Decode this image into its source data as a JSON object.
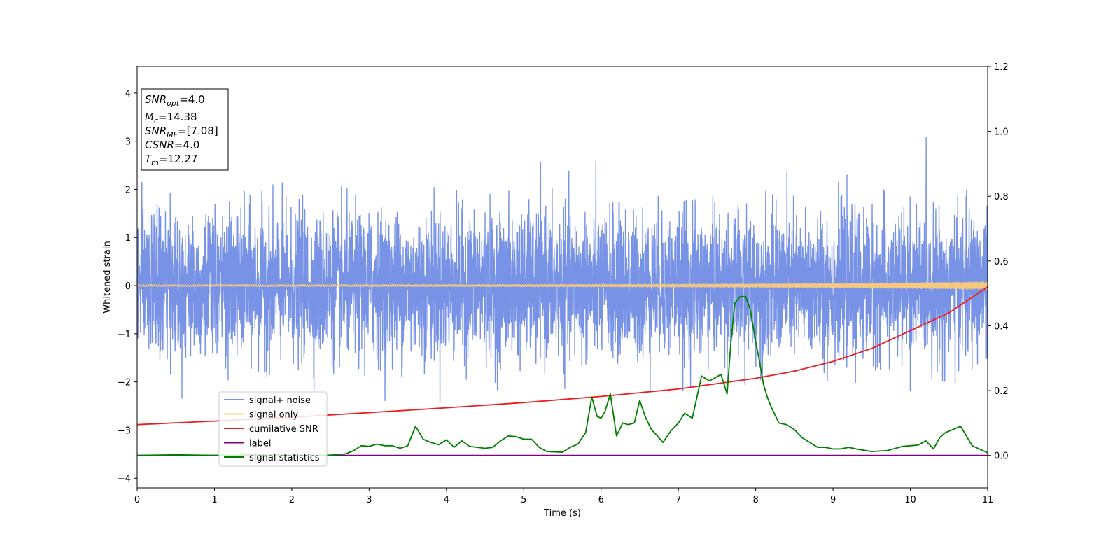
{
  "chart_data": {
    "type": "line",
    "xlabel": "Time (s)",
    "ylabel": "Whitened strain",
    "xlim": [
      0,
      11
    ],
    "ylim": [
      -4.2,
      4.55
    ],
    "y2lim": [
      -0.1,
      1.2
    ],
    "x_ticks": [
      0,
      1,
      2,
      3,
      4,
      5,
      6,
      7,
      8,
      9,
      10,
      11
    ],
    "y_ticks": [
      4,
      3,
      2,
      1,
      0,
      -1,
      -2,
      -3,
      -4
    ],
    "y_tick_labels": [
      "4",
      "3",
      "2",
      "1",
      "0",
      "−1",
      "−2",
      "−3",
      "−4"
    ],
    "y2_ticks": [
      1.2,
      1.0,
      0.8,
      0.6,
      0.4,
      0.2,
      0.0
    ],
    "y2_tick_labels": [
      "1.2",
      "1.0",
      "0.8",
      "0.6",
      "0.4",
      "0.2",
      "0.0"
    ],
    "legend_position": "bottom-left",
    "legend": [
      {
        "label": "signal+ noise",
        "color": "#7893e6"
      },
      {
        "label": "signal only",
        "color": "#f7c97e"
      },
      {
        "label": "cumilative SNR",
        "color": "#ee1c1c"
      },
      {
        "label": "label",
        "color": "#800080"
      },
      {
        "label": "signal statistics",
        "color": "#008000"
      }
    ],
    "info_box": {
      "snr_opt": "4.0",
      "mc": "14.38",
      "snr_mf": "[7.08]",
      "csnr": "4.0",
      "tm": "12.27"
    },
    "series": [
      {
        "name": "signal+ noise",
        "axis": "left",
        "color": "#7893e6",
        "style": "noise",
        "sigma": 0.72,
        "x_range": [
          0,
          11
        ]
      },
      {
        "name": "signal only",
        "axis": "left",
        "color": "#f7c97e",
        "style": "chirp",
        "start_amplitude": 0.02,
        "end_amplitude": 0.08,
        "x_range": [
          0,
          11
        ]
      },
      {
        "name": "cumilative SNR",
        "axis": "right",
        "color": "#ee1c1c",
        "x": [
          0,
          1,
          2,
          3,
          4,
          5,
          6,
          7,
          8,
          8.5,
          9,
          9.5,
          10,
          10.5,
          11
        ],
        "y": [
          0.095,
          0.106,
          0.118,
          0.132,
          0.147,
          0.163,
          0.182,
          0.205,
          0.238,
          0.26,
          0.29,
          0.33,
          0.385,
          0.44,
          0.52
        ]
      },
      {
        "name": "label",
        "axis": "right",
        "color": "#800080",
        "x": [
          0,
          11
        ],
        "y": [
          0.0,
          0.0
        ]
      },
      {
        "name": "signal statistics",
        "axis": "right",
        "color": "#008000",
        "x": [
          0,
          0.5,
          1.0,
          1.5,
          2.0,
          2.5,
          2.7,
          2.8,
          2.9,
          3.0,
          3.1,
          3.2,
          3.3,
          3.4,
          3.5,
          3.6,
          3.7,
          3.8,
          3.9,
          4.0,
          4.1,
          4.2,
          4.3,
          4.4,
          4.5,
          4.6,
          4.7,
          4.8,
          4.9,
          5.0,
          5.1,
          5.2,
          5.3,
          5.5,
          5.6,
          5.7,
          5.8,
          5.88,
          5.95,
          6.0,
          6.05,
          6.12,
          6.2,
          6.28,
          6.35,
          6.43,
          6.5,
          6.57,
          6.65,
          6.73,
          6.8,
          6.9,
          7.0,
          7.08,
          7.18,
          7.3,
          7.4,
          7.48,
          7.55,
          7.63,
          7.68,
          7.73,
          7.8,
          7.87,
          7.93,
          8.0,
          8.05,
          8.1,
          8.15,
          8.2,
          8.3,
          8.4,
          8.5,
          8.6,
          8.7,
          8.8,
          8.9,
          9.0,
          9.1,
          9.2,
          9.3,
          9.5,
          9.7,
          9.9,
          10.0,
          10.1,
          10.2,
          10.3,
          10.38,
          10.45,
          10.5,
          10.55,
          10.65,
          10.8,
          11.0
        ],
        "y": [
          0.0,
          0.002,
          0.0,
          0.002,
          0.001,
          0.001,
          0.005,
          0.015,
          0.03,
          0.028,
          0.035,
          0.03,
          0.03,
          0.022,
          0.03,
          0.09,
          0.05,
          0.04,
          0.033,
          0.048,
          0.025,
          0.045,
          0.028,
          0.025,
          0.022,
          0.025,
          0.045,
          0.06,
          0.058,
          0.05,
          0.05,
          0.025,
          0.012,
          0.01,
          0.025,
          0.035,
          0.07,
          0.18,
          0.12,
          0.115,
          0.135,
          0.19,
          0.06,
          0.1,
          0.095,
          0.1,
          0.17,
          0.12,
          0.08,
          0.06,
          0.04,
          0.075,
          0.1,
          0.13,
          0.115,
          0.245,
          0.23,
          0.24,
          0.25,
          0.19,
          0.35,
          0.47,
          0.49,
          0.49,
          0.45,
          0.35,
          0.29,
          0.22,
          0.18,
          0.15,
          0.1,
          0.095,
          0.08,
          0.055,
          0.04,
          0.025,
          0.025,
          0.02,
          0.02,
          0.025,
          0.02,
          0.012,
          0.015,
          0.028,
          0.03,
          0.032,
          0.045,
          0.02,
          0.055,
          0.07,
          0.075,
          0.08,
          0.09,
          0.03,
          0.008
        ]
      }
    ]
  }
}
